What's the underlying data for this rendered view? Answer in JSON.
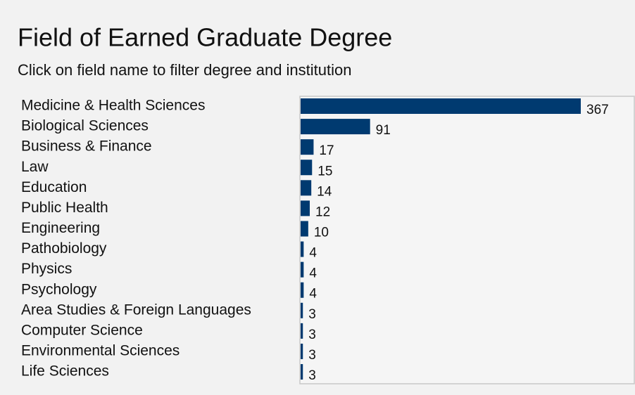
{
  "chart_data": {
    "type": "bar",
    "orientation": "horizontal",
    "title": "Field of Earned Graduate Degree",
    "subtitle": "Click on field name to filter degree and institution",
    "categories": [
      "Medicine & Health Sciences",
      "Biological Sciences",
      "Business & Finance",
      "Law",
      "Education",
      "Public Health",
      "Engineering",
      "Pathobiology",
      "Physics",
      "Psychology",
      "Area Studies & Foreign Languages",
      "Computer Science",
      "Environmental Sciences",
      "Life Sciences"
    ],
    "values": [
      367,
      91,
      17,
      15,
      14,
      12,
      10,
      4,
      4,
      4,
      3,
      3,
      3,
      3
    ],
    "color": "#003a70"
  }
}
